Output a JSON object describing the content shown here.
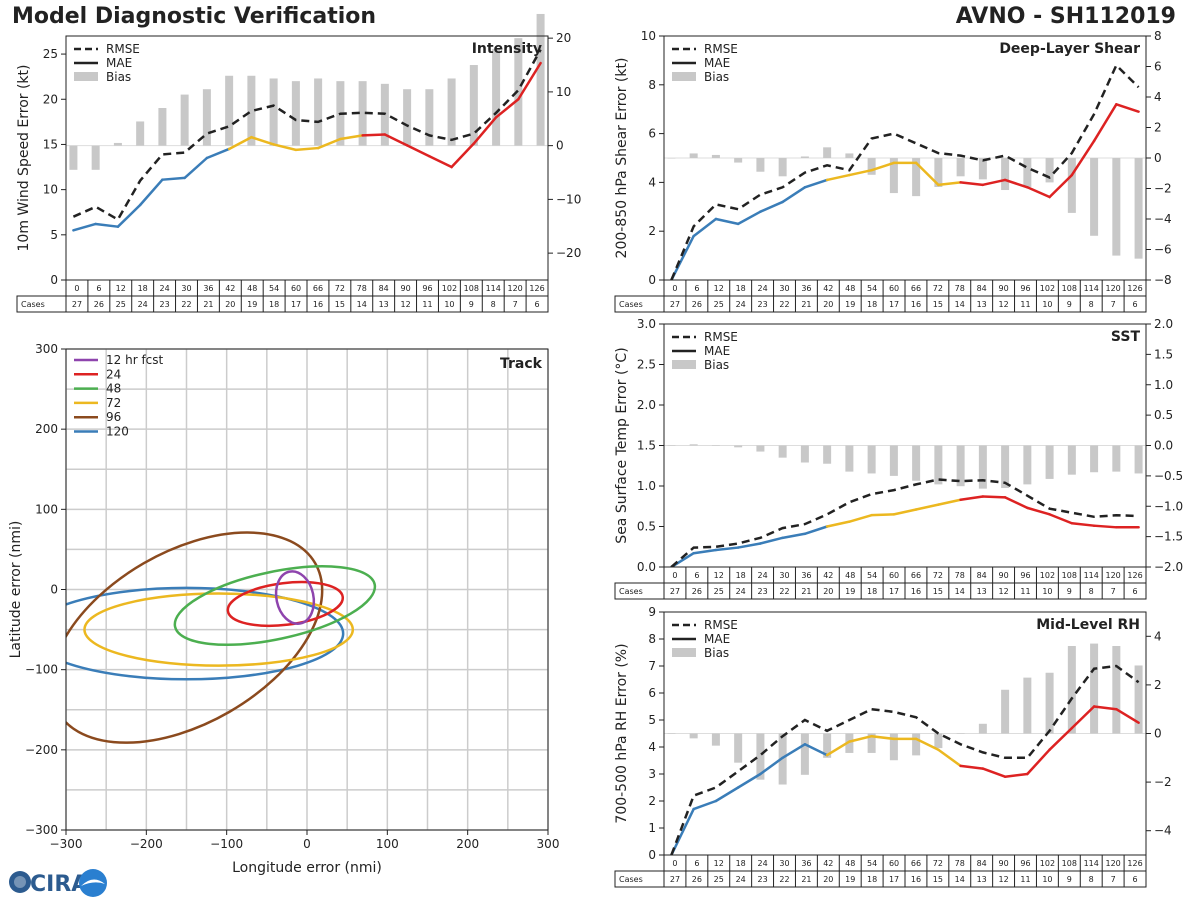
{
  "header": {
    "left_title": "Model Diagnostic Verification",
    "right_title": "AVNO - SH112019"
  },
  "logo": {
    "text": "CIRA"
  },
  "colors": {
    "rmse": "#222222",
    "mae": "#222222",
    "bias": "#c8c8c8",
    "seg_blue": "#3a7db8",
    "seg_yellow": "#ecb820",
    "seg_red": "#dd2222",
    "track_colors": [
      "#8e44ad",
      "#dd2222",
      "#4caf50",
      "#ecb820",
      "#8b4a1e",
      "#3a7db8"
    ]
  },
  "table": {
    "cases_label": "Cases",
    "hours": [
      "0",
      "6",
      "12",
      "18",
      "24",
      "30",
      "36",
      "42",
      "48",
      "54",
      "60",
      "66",
      "72",
      "78",
      "84",
      "90",
      "96",
      "102",
      "108",
      "114",
      "120",
      "126"
    ],
    "cases": [
      "27",
      "26",
      "25",
      "24",
      "23",
      "22",
      "21",
      "20",
      "19",
      "18",
      "17",
      "16",
      "15",
      "14",
      "13",
      "12",
      "11",
      "10",
      "9",
      "8",
      "7",
      "6"
    ]
  },
  "chart_data": [
    {
      "id": "intensity",
      "type": "line",
      "title": "Intensity",
      "ylabel": "10m Wind Speed Error (kt)",
      "ylim": [
        0,
        27
      ],
      "yticks": [
        "0",
        "5",
        "10",
        "15",
        "20",
        "25"
      ],
      "yticks_values": [
        0,
        5,
        10,
        15,
        20,
        25
      ],
      "y2lim": [
        -25,
        20.4
      ],
      "y2ticks": [
        "−20",
        "−10",
        "0",
        "10",
        "20"
      ],
      "y2ticks_values": [
        -20,
        -10,
        0,
        10,
        20
      ],
      "legend": [
        "RMSE",
        "MAE",
        "Bias"
      ],
      "legend_position": "top-left",
      "x": [
        0,
        6,
        12,
        18,
        24,
        30,
        36,
        42,
        48,
        54,
        60,
        66,
        72,
        78,
        84,
        90,
        96,
        102,
        108,
        114,
        120,
        126
      ],
      "series": [
        {
          "name": "RMSE",
          "values": [
            7.0,
            8.1,
            6.7,
            11.0,
            13.9,
            14.1,
            16.2,
            17.0,
            18.7,
            19.3,
            17.7,
            17.5,
            18.4,
            18.5,
            18.4,
            17.1,
            16.0,
            15.5,
            16.2,
            18.5,
            21.0,
            25.5
          ]
        },
        {
          "name": "MAE",
          "values": [
            5.5,
            6.2,
            5.9,
            8.3,
            11.1,
            11.3,
            13.5,
            14.5,
            15.8,
            15.0,
            14.4,
            14.6,
            15.6,
            16.0,
            16.1,
            14.9,
            13.7,
            12.5,
            15.1,
            18.0,
            20.0,
            24.0
          ]
        },
        {
          "name": "Bias",
          "values": [
            -4.5,
            -4.5,
            0.5,
            4.5,
            7.0,
            9.5,
            10.5,
            13.0,
            13.0,
            12.5,
            12.0,
            12.5,
            12.0,
            12.0,
            11.5,
            10.5,
            10.5,
            12.5,
            15.0,
            18.0,
            20.0,
            24.5
          ]
        }
      ]
    },
    {
      "id": "shear",
      "type": "line",
      "title": "Deep-Layer Shear",
      "ylabel": "200-850 hPa Shear Error (kt)",
      "ylim": [
        0,
        10
      ],
      "yticks": [
        "0",
        "2",
        "4",
        "6",
        "8",
        "10"
      ],
      "yticks_values": [
        0,
        2,
        4,
        6,
        8,
        10
      ],
      "y2lim": [
        -8,
        8
      ],
      "y2ticks": [
        "−8",
        "−6",
        "−4",
        "−2",
        "0",
        "2",
        "4",
        "6",
        "8"
      ],
      "y2ticks_values": [
        -8,
        -6,
        -4,
        -2,
        0,
        2,
        4,
        6,
        8
      ],
      "legend": [
        "RMSE",
        "MAE",
        "Bias"
      ],
      "legend_position": "top-left",
      "x": [
        0,
        6,
        12,
        18,
        24,
        30,
        36,
        42,
        48,
        54,
        60,
        66,
        72,
        78,
        84,
        90,
        96,
        102,
        108,
        114,
        120,
        126
      ],
      "series": [
        {
          "name": "RMSE",
          "values": [
            0.0,
            2.2,
            3.1,
            2.9,
            3.5,
            3.8,
            4.4,
            4.7,
            4.5,
            5.8,
            6.0,
            5.6,
            5.2,
            5.1,
            4.9,
            5.1,
            4.6,
            4.2,
            5.2,
            6.8,
            8.8,
            7.9
          ]
        },
        {
          "name": "MAE",
          "values": [
            0.0,
            1.8,
            2.5,
            2.3,
            2.8,
            3.2,
            3.8,
            4.1,
            4.3,
            4.5,
            4.8,
            4.8,
            3.9,
            4.0,
            3.9,
            4.1,
            3.8,
            3.4,
            4.3,
            5.7,
            7.2,
            6.9
          ]
        },
        {
          "name": "Bias",
          "values": [
            0.0,
            0.3,
            0.2,
            -0.3,
            -0.9,
            -1.2,
            0.1,
            0.7,
            0.3,
            -1.1,
            -2.3,
            -2.5,
            -1.9,
            -1.2,
            -1.4,
            -2.1,
            -1.9,
            -1.6,
            -3.6,
            -5.1,
            -6.4,
            -6.6
          ]
        }
      ]
    },
    {
      "id": "sst",
      "type": "line",
      "title": "SST",
      "ylabel": "Sea Surface Temp Error (°C)",
      "ylim": [
        0,
        3.0
      ],
      "yticks": [
        "0.0",
        "0.5",
        "1.0",
        "1.5",
        "2.0",
        "2.5",
        "3.0"
      ],
      "yticks_values": [
        0,
        0.5,
        1.0,
        1.5,
        2.0,
        2.5,
        3.0
      ],
      "y2lim": [
        -2.0,
        2.0
      ],
      "y2ticks": [
        "−2.0",
        "−1.5",
        "−1.0",
        "−0.5",
        "0.0",
        "0.5",
        "1.0",
        "1.5",
        "2.0"
      ],
      "y2ticks_values": [
        -2.0,
        -1.5,
        -1.0,
        -0.5,
        0,
        0.5,
        1.0,
        1.5,
        2.0
      ],
      "legend": [
        "RMSE",
        "MAE",
        "Bias"
      ],
      "legend_position": "top-left",
      "x": [
        0,
        6,
        12,
        18,
        24,
        30,
        36,
        42,
        48,
        54,
        60,
        66,
        72,
        78,
        84,
        90,
        96,
        102,
        108,
        114,
        120,
        126
      ],
      "series": [
        {
          "name": "RMSE",
          "values": [
            0.0,
            0.24,
            0.25,
            0.29,
            0.36,
            0.48,
            0.53,
            0.65,
            0.8,
            0.9,
            0.95,
            1.02,
            1.08,
            1.06,
            1.07,
            1.04,
            0.88,
            0.72,
            0.67,
            0.62,
            0.64,
            0.63
          ]
        },
        {
          "name": "MAE",
          "values": [
            0.0,
            0.17,
            0.21,
            0.24,
            0.29,
            0.36,
            0.41,
            0.5,
            0.56,
            0.64,
            0.65,
            0.71,
            0.77,
            0.83,
            0.87,
            0.86,
            0.73,
            0.65,
            0.54,
            0.51,
            0.49,
            0.49
          ]
        },
        {
          "name": "Bias",
          "values": [
            0.0,
            0.02,
            0.0,
            -0.03,
            -0.1,
            -0.2,
            -0.28,
            -0.3,
            -0.43,
            -0.46,
            -0.5,
            -0.58,
            -0.64,
            -0.67,
            -0.71,
            -0.7,
            -0.64,
            -0.55,
            -0.48,
            -0.44,
            -0.43,
            -0.46
          ]
        }
      ]
    },
    {
      "id": "rh",
      "type": "line",
      "title": "Mid-Level RH",
      "ylabel": "700-500 hPa RH Error (%)",
      "ylim": [
        0,
        9
      ],
      "yticks": [
        "0",
        "1",
        "2",
        "3",
        "4",
        "5",
        "6",
        "7",
        "8",
        "9"
      ],
      "yticks_values": [
        0,
        1,
        2,
        3,
        4,
        5,
        6,
        7,
        8,
        9
      ],
      "y2lim": [
        -5,
        5
      ],
      "y2ticks": [
        "−4",
        "−2",
        "0",
        "2",
        "4"
      ],
      "y2ticks_values": [
        -4,
        -2,
        0,
        2,
        4
      ],
      "legend": [
        "RMSE",
        "MAE",
        "Bias"
      ],
      "legend_position": "top-left",
      "x": [
        0,
        6,
        12,
        18,
        24,
        30,
        36,
        42,
        48,
        54,
        60,
        66,
        72,
        78,
        84,
        90,
        96,
        102,
        108,
        114,
        120,
        126
      ],
      "series": [
        {
          "name": "RMSE",
          "values": [
            0.0,
            2.2,
            2.5,
            3.1,
            3.7,
            4.4,
            5.0,
            4.6,
            5.0,
            5.4,
            5.3,
            5.1,
            4.5,
            4.1,
            3.8,
            3.6,
            3.6,
            4.6,
            5.8,
            6.9,
            7.0,
            6.4
          ]
        },
        {
          "name": "MAE",
          "values": [
            0.0,
            1.7,
            2.0,
            2.5,
            3.0,
            3.6,
            4.1,
            3.7,
            4.2,
            4.4,
            4.3,
            4.3,
            3.9,
            3.3,
            3.2,
            2.9,
            3.0,
            3.9,
            4.7,
            5.5,
            5.4,
            4.9
          ]
        },
        {
          "name": "Bias",
          "values": [
            0.0,
            -0.2,
            -0.5,
            -1.2,
            -1.9,
            -2.1,
            -1.7,
            -1.0,
            -0.8,
            -0.8,
            -1.1,
            -0.9,
            -0.6,
            0.0,
            0.4,
            1.8,
            2.3,
            2.5,
            3.6,
            3.7,
            3.6,
            2.8
          ]
        }
      ]
    },
    {
      "id": "track",
      "type": "scatter",
      "title": "Track",
      "xlabel": "Longitude error (nmi)",
      "ylabel": "Latitude error (nmi)",
      "xlim": [
        -300,
        300
      ],
      "ylim": [
        -300,
        300
      ],
      "xticks": [
        "−300",
        "−200",
        "−100",
        "0",
        "100",
        "200",
        "300"
      ],
      "xticks_values": [
        -300,
        -200,
        -100,
        0,
        100,
        200,
        300
      ],
      "yticks": [
        "−300",
        "−200",
        "−100",
        "0",
        "100",
        "200",
        "300"
      ],
      "yticks_values": [
        -300,
        -200,
        -100,
        0,
        100,
        200,
        300
      ],
      "legend_position": "top-left",
      "series": [
        {
          "name": "12 hr fcst",
          "center": [
            -15,
            -10
          ],
          "radii": [
            23,
            33
          ],
          "angle": 12
        },
        {
          "name": "24",
          "center": [
            -27,
            -18
          ],
          "radii": [
            72,
            26
          ],
          "angle": 7
        },
        {
          "name": "48",
          "center": [
            -40,
            -20
          ],
          "radii": [
            127,
            42
          ],
          "angle": 12
        },
        {
          "name": "72",
          "center": [
            -110,
            -50
          ],
          "radii": [
            167,
            45
          ],
          "angle": 0
        },
        {
          "name": "96",
          "center": [
            -150,
            -60
          ],
          "radii": [
            185,
            107
          ],
          "angle": 30
        },
        {
          "name": "120",
          "center": [
            -150,
            -55
          ],
          "radii": [
            195,
            57
          ],
          "angle": 0
        }
      ]
    }
  ]
}
